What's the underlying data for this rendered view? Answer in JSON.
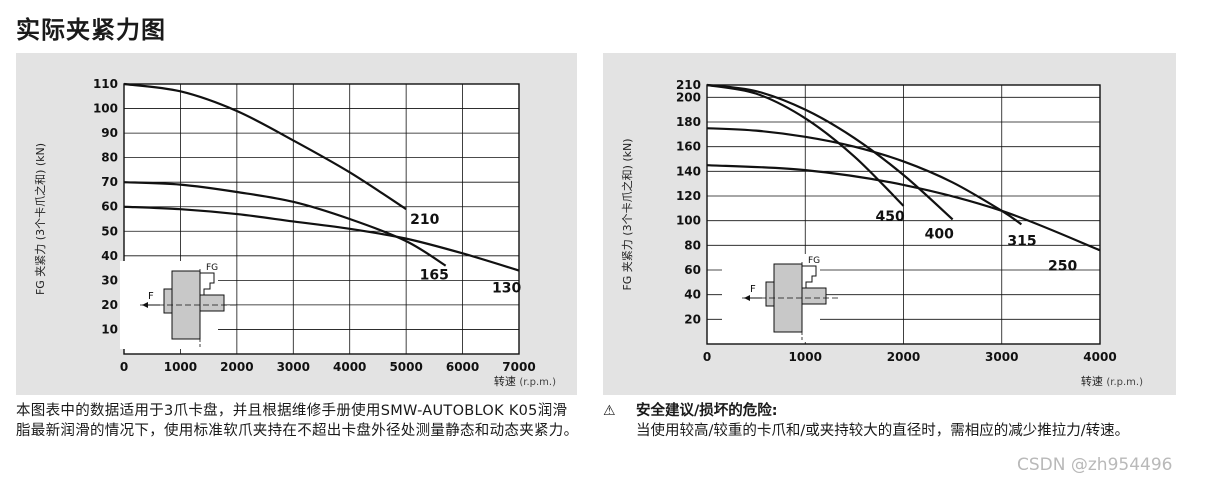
{
  "page": {
    "title": "实际夹紧力图",
    "description": "本图表中的数据适用于3爪卡盘，并且根据维修手册使用SMW-AUTOBLOK K05润滑脂最新润滑的情况下，使用标准软爪夹持在不超出卡盘外径处测量静态和动态夹紧力。",
    "warning": {
      "icon": "warning-triangle-icon",
      "title": "安全建议/损坏的危险:",
      "body": "当使用较高/较重的卡爪和/或夹持较大的直径时，需相应的减少推拉力/转速。"
    },
    "watermark": "CSDN @zh954496"
  },
  "chart_data": [
    {
      "type": "line",
      "xlabel": "转速",
      "xunit": "(r.p.m.)",
      "ylabel": "FG 夹紧力 (3个卡爪之和) (kN)",
      "xlim": [
        0,
        7000
      ],
      "ylim": [
        0,
        110
      ],
      "xticks": [
        0,
        1000,
        2000,
        3000,
        4000,
        5000,
        6000,
        7000
      ],
      "yticks": [
        10,
        20,
        30,
        40,
        50,
        60,
        70,
        80,
        90,
        100,
        110
      ],
      "grid": true,
      "inset_labels": {
        "force_g": "FG",
        "force": "F"
      },
      "series": [
        {
          "name": "210",
          "x": [
            0,
            1000,
            2000,
            3000,
            4000,
            5000
          ],
          "y": [
            110,
            107,
            99,
            87,
            74,
            59
          ]
        },
        {
          "name": "165",
          "x": [
            0,
            1000,
            2000,
            3000,
            4000,
            5000,
            5700
          ],
          "y": [
            70,
            69,
            66,
            62,
            55,
            46,
            36
          ]
        },
        {
          "name": "130",
          "x": [
            0,
            1000,
            2000,
            3000,
            4000,
            5000,
            6000,
            7000
          ],
          "y": [
            60,
            59,
            57,
            54,
            51,
            47,
            41,
            34
          ]
        }
      ]
    },
    {
      "type": "line",
      "xlabel": "转速",
      "xunit": "(r.p.m.)",
      "ylabel": "FG 夹紧力 (3个卡爪之和) (kN)",
      "xlim": [
        0,
        4000
      ],
      "ylim": [
        0,
        210
      ],
      "xticks": [
        0,
        1000,
        2000,
        3000,
        4000
      ],
      "yticks": [
        20,
        40,
        60,
        80,
        100,
        120,
        140,
        160,
        180,
        200,
        210
      ],
      "grid": true,
      "inset_labels": {
        "force_g": "FG",
        "force": "F"
      },
      "series": [
        {
          "name": "450",
          "x": [
            0,
            500,
            1000,
            1500,
            2000
          ],
          "y": [
            210,
            203,
            183,
            152,
            112
          ]
        },
        {
          "name": "400",
          "x": [
            0,
            500,
            1000,
            1500,
            2000,
            2500
          ],
          "y": [
            210,
            205,
            190,
            167,
            137,
            101
          ]
        },
        {
          "name": "315",
          "x": [
            0,
            500,
            1000,
            1500,
            2000,
            2500,
            3000,
            3200
          ],
          "y": [
            175,
            173,
            168,
            160,
            148,
            131,
            108,
            97
          ]
        },
        {
          "name": "250",
          "x": [
            0,
            1000,
            2000,
            3000,
            4000
          ],
          "y": [
            145,
            141,
            129,
            108,
            76
          ]
        }
      ]
    }
  ]
}
